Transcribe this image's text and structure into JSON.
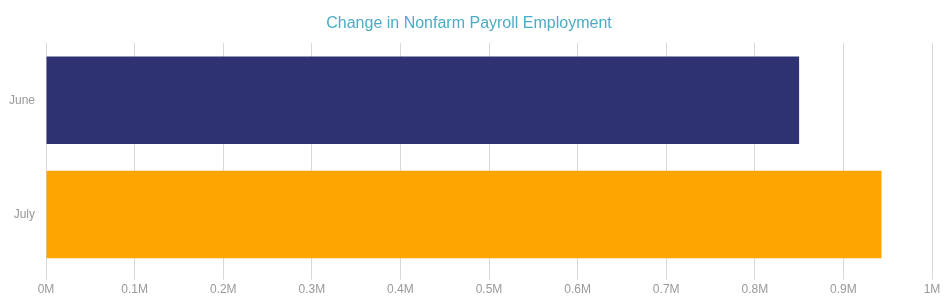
{
  "chart_data": {
    "type": "bar",
    "orientation": "horizontal",
    "title": "Change in Nonfarm Payroll Employment",
    "categories": [
      "June",
      "July"
    ],
    "values": [
      850000,
      943000
    ],
    "colors": [
      "#2E3272",
      "#FFA500"
    ],
    "xlim": [
      0,
      1000000
    ],
    "xticks": [
      {
        "value": 0,
        "label": "0M"
      },
      {
        "value": 100000,
        "label": "0.1M"
      },
      {
        "value": 200000,
        "label": "0.2M"
      },
      {
        "value": 300000,
        "label": "0.3M"
      },
      {
        "value": 400000,
        "label": "0.4M"
      },
      {
        "value": 500000,
        "label": "0.5M"
      },
      {
        "value": 600000,
        "label": "0.6M"
      },
      {
        "value": 700000,
        "label": "0.7M"
      },
      {
        "value": 800000,
        "label": "0.8M"
      },
      {
        "value": 900000,
        "label": "0.9M"
      },
      {
        "value": 1000000,
        "label": "1M"
      }
    ],
    "grid": true
  }
}
